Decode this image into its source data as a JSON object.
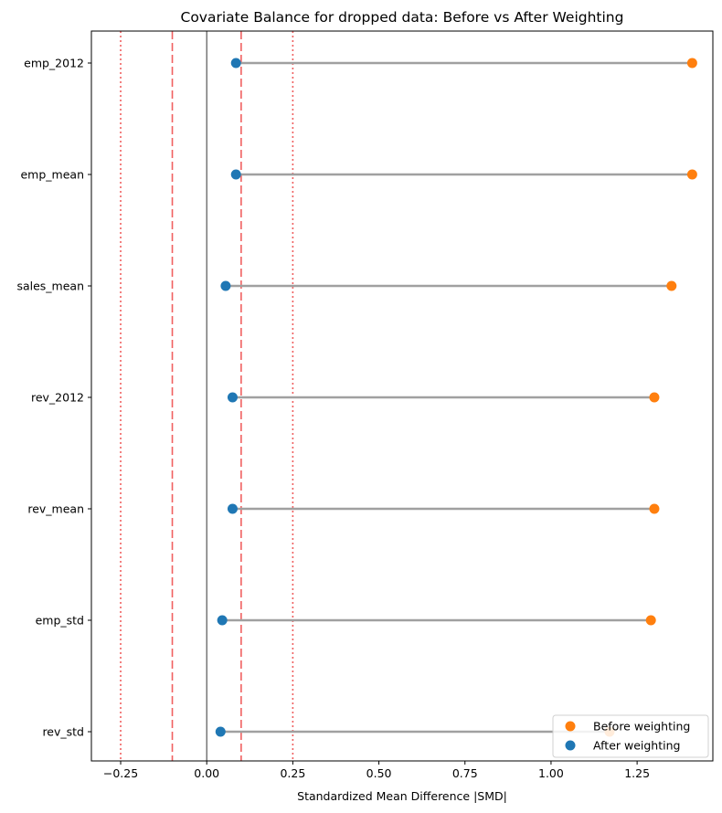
{
  "chart_data": {
    "type": "dumbbell",
    "title": "Covariate Balance for dropped data: Before vs After Weighting",
    "xlabel": "Standardized Mean Difference |SMD|",
    "ylabel": "",
    "xlim": [
      -0.335,
      1.47
    ],
    "x_ticks": [
      -0.25,
      0.0,
      0.25,
      0.5,
      0.75,
      1.0,
      1.25
    ],
    "x_tick_labels": [
      "−0.25",
      "0.00",
      "0.25",
      "0.50",
      "0.75",
      "1.00",
      "1.25"
    ],
    "categories": [
      "emp_2012",
      "emp_mean",
      "sales_mean",
      "rev_2012",
      "rev_mean",
      "emp_std",
      "rev_std"
    ],
    "series": [
      {
        "name": "Before weighting",
        "color": "#ff7f0e",
        "values": [
          1.41,
          1.41,
          1.35,
          1.3,
          1.3,
          1.29,
          1.17
        ]
      },
      {
        "name": "After weighting",
        "color": "#1f77b4",
        "values": [
          0.085,
          0.085,
          0.055,
          0.075,
          0.075,
          0.045,
          0.04
        ]
      }
    ],
    "connector_color": "#a0a0a0",
    "reference_lines": [
      {
        "x": 0.0,
        "style": "solid",
        "color": "#555555"
      },
      {
        "x": -0.1,
        "style": "dashed",
        "color": "#f06060"
      },
      {
        "x": 0.1,
        "style": "dashed",
        "color": "#f06060"
      },
      {
        "x": -0.25,
        "style": "dotted",
        "color": "#f06060"
      },
      {
        "x": 0.25,
        "style": "dotted",
        "color": "#f06060"
      }
    ],
    "legend_position": "lower-right",
    "grid": false
  }
}
